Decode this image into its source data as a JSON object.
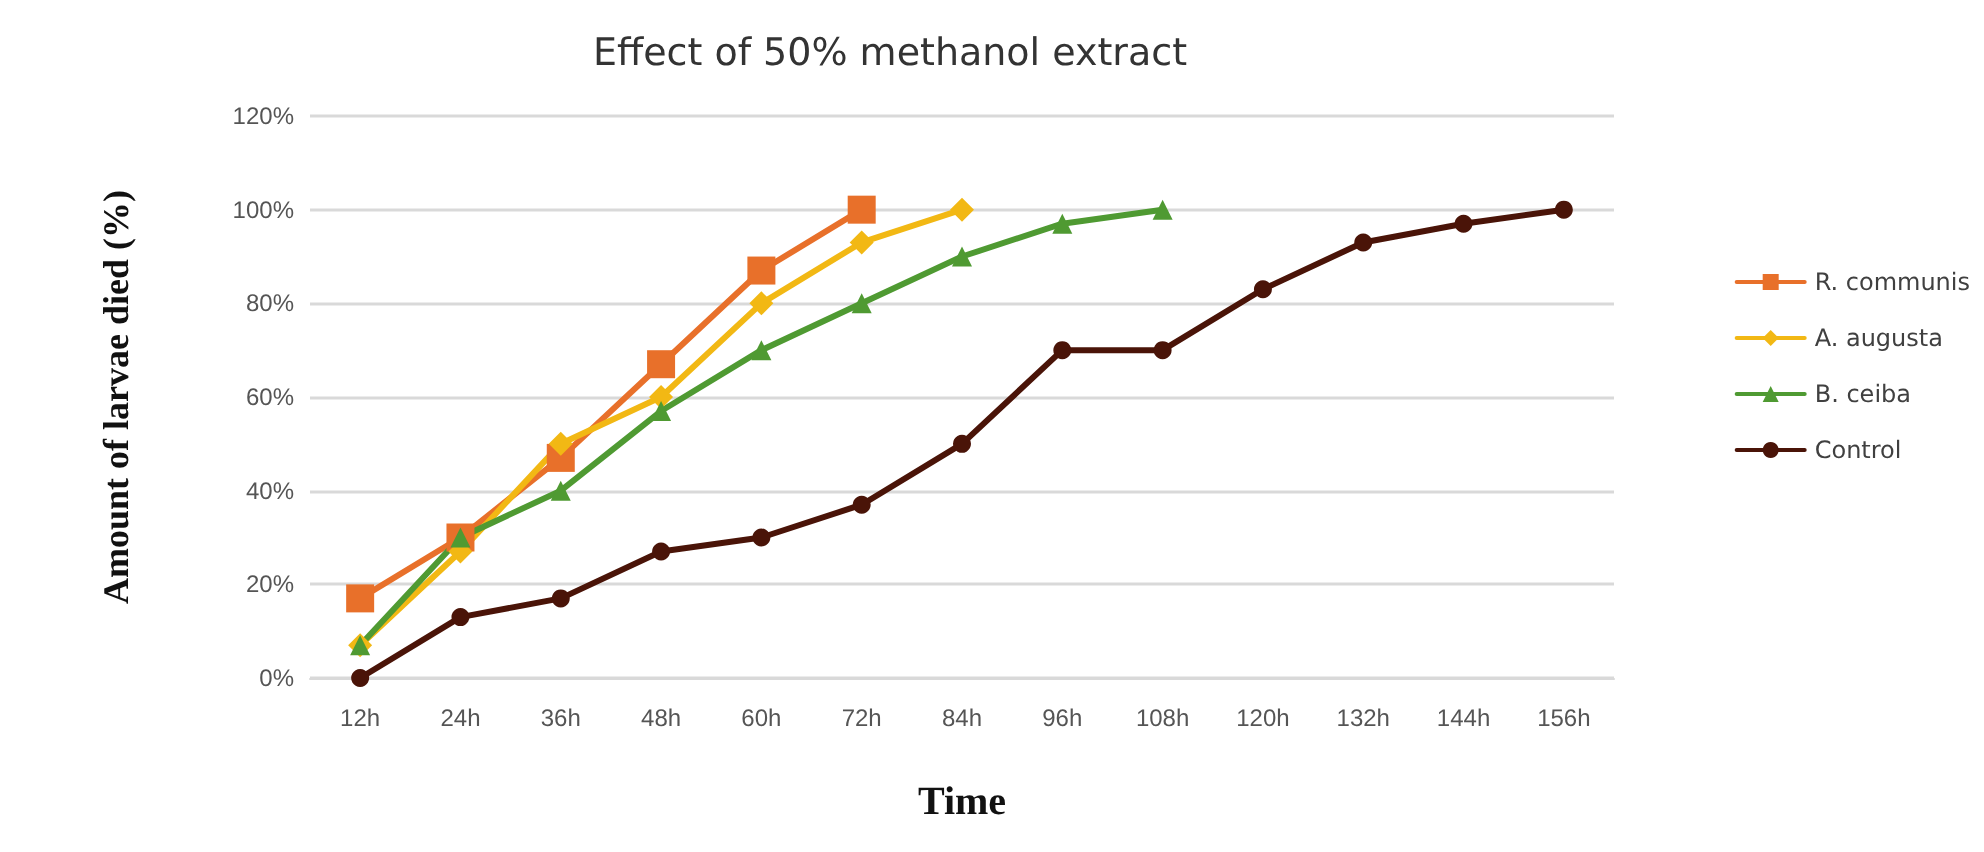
{
  "chart_data": {
    "type": "line",
    "title": "Effect of 50% methanol extract",
    "xlabel": "Time",
    "ylabel": "Amount of larvae died (%)",
    "categories": [
      "12h",
      "24h",
      "36h",
      "48h",
      "60h",
      "72h",
      "84h",
      "96h",
      "108h",
      "120h",
      "132h",
      "144h",
      "156h"
    ],
    "ylim": [
      0,
      120
    ],
    "yticks": [
      {
        "value": 0,
        "label": "0%"
      },
      {
        "value": 20,
        "label": "20%"
      },
      {
        "value": 40,
        "label": "40%"
      },
      {
        "value": 60,
        "label": "60%"
      },
      {
        "value": 80,
        "label": "80%"
      },
      {
        "value": 100,
        "label": "100%"
      },
      {
        "value": 120,
        "label": "120%"
      }
    ],
    "grid": "y",
    "legend": "right",
    "line_style": "solid",
    "series": [
      {
        "name": "R. communis",
        "color": "#e8702a",
        "marker": "square",
        "values": [
          17,
          30,
          47,
          67,
          87,
          100,
          null,
          null,
          null,
          null,
          null,
          null,
          null
        ]
      },
      {
        "name": "A. augusta",
        "color": "#f2b814",
        "marker": "diamond",
        "values": [
          7,
          27,
          50,
          60,
          80,
          93,
          100,
          null,
          null,
          null,
          null,
          null,
          null
        ]
      },
      {
        "name": "B. ceiba",
        "color": "#4f9a32",
        "marker": "triangle",
        "values": [
          7,
          30,
          40,
          57,
          70,
          80,
          90,
          97,
          100,
          null,
          null,
          null,
          null
        ]
      },
      {
        "name": "Control",
        "color": "#4a1408",
        "marker": "circle",
        "values": [
          0,
          13,
          17,
          27,
          30,
          37,
          50,
          70,
          70,
          83,
          93,
          97,
          100
        ]
      }
    ]
  }
}
